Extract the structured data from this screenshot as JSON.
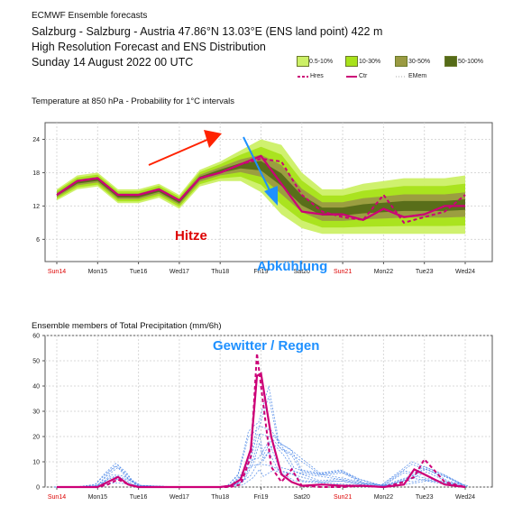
{
  "header": {
    "app": "ECMWF Ensemble forecasts",
    "location": "Salzburg - Salzburg - Austria 47.86°N 13.03°E (ENS land point) 422 m",
    "subtitle": "High Resolution Forecast and ENS Distribution",
    "date": "Sunday 14 August 2022 00 UTC"
  },
  "legend": {
    "bands": [
      {
        "label": "0.5-10%",
        "color": "#ccf066"
      },
      {
        "label": "10-30%",
        "color": "#a8e21a"
      },
      {
        "label": "30-50%",
        "color": "#9a9a42"
      },
      {
        "label": "50-100%",
        "color": "#556b18"
      }
    ],
    "lines": [
      {
        "label": "Hres",
        "style": "dashed",
        "color": "#cc0077"
      },
      {
        "label": "Ctr",
        "style": "solid",
        "color": "#cc0077"
      },
      {
        "label": "EMem",
        "style": "dotted",
        "color": "#aaaaaa"
      }
    ]
  },
  "days": [
    "Sun14",
    "Mon15",
    "Tue16",
    "Wed17",
    "Thu18",
    "Fri19",
    "Sat20",
    "Sun21",
    "Mon22",
    "Tue23",
    "Wed24"
  ],
  "weekend_days": [
    "Sun14",
    "Sun21"
  ],
  "annotations": {
    "hitze": "Hitze",
    "abkuehlung": "Abkühlung",
    "gewitter": "Gewitter / Regen"
  },
  "chart_data": [
    {
      "type": "area",
      "title": "Temperature at 850 hPa - Probability for 1°C intervals",
      "ylim": [
        2,
        27
      ],
      "yticks": [
        6,
        12,
        18,
        24
      ],
      "grid": true,
      "x": [
        0,
        0.5,
        1,
        1.5,
        2,
        2.5,
        3,
        3.5,
        4,
        4.5,
        5,
        5.5,
        6,
        6.5,
        7,
        7.5,
        8,
        8.5,
        9,
        9.5,
        10
      ],
      "ctr": [
        14,
        16.5,
        17,
        14,
        14,
        15,
        13,
        17,
        18,
        19.5,
        21,
        16,
        11,
        10.5,
        10.5,
        9.5,
        11.5,
        10,
        10.5,
        12,
        12
      ],
      "hres": [
        14,
        16.5,
        17,
        14,
        14,
        15,
        13,
        17,
        18,
        19.5,
        20.5,
        20,
        14,
        11,
        10,
        9.5,
        14,
        9,
        10,
        11,
        14
      ],
      "ens_low": [
        13,
        15,
        15.5,
        12.5,
        12.5,
        13.5,
        11.5,
        15.5,
        16.5,
        16.5,
        14.5,
        10.5,
        8,
        7,
        7,
        7,
        7,
        7,
        7,
        7,
        7
      ],
      "ens_high": [
        15,
        17.5,
        18,
        15,
        15,
        16,
        14,
        18.5,
        20,
        22,
        24,
        23,
        18,
        15,
        15,
        16,
        16.5,
        17,
        17,
        17,
        17.5
      ]
    },
    {
      "type": "line",
      "title": "Ensemble members of Total Precipitation (mm/6h)",
      "ylim": [
        0,
        60
      ],
      "yticks": [
        0,
        10,
        20,
        30,
        40,
        50,
        60
      ],
      "grid": true,
      "x": [
        0,
        0.5,
        1,
        1.25,
        1.5,
        1.75,
        2,
        3,
        4,
        4.25,
        4.5,
        4.75,
        4.9,
        5,
        5.25,
        5.5,
        5.75,
        6,
        6.5,
        7,
        7.5,
        8,
        8.5,
        8.75,
        9,
        9.5,
        10
      ],
      "ctr": [
        0,
        0,
        0,
        2,
        4,
        1,
        0,
        0,
        0,
        0.5,
        3,
        15,
        44,
        45,
        20,
        5,
        2,
        0.5,
        1,
        0.5,
        0.5,
        0,
        1,
        7,
        5,
        1,
        0
      ],
      "hres": [
        0,
        0,
        0,
        1,
        3,
        1,
        0,
        0,
        0,
        0,
        1,
        12,
        53,
        40,
        8,
        2,
        7,
        0.5,
        0,
        0,
        0.5,
        0,
        2,
        4,
        11,
        2,
        0
      ],
      "members_max": [
        0,
        0,
        1,
        8,
        11,
        6,
        1,
        0,
        0,
        1,
        6,
        22,
        35,
        30,
        40,
        25,
        18,
        12,
        8,
        8,
        3,
        1,
        8,
        10,
        12,
        6,
        1
      ]
    }
  ]
}
